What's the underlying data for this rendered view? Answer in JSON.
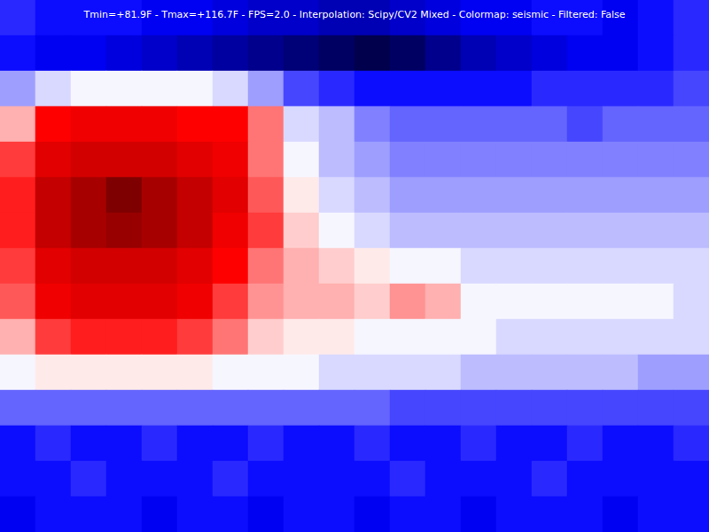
{
  "chart_data": {
    "type": "heatmap",
    "title": "Tmin=+81.9F - Tmax=+116.7F - FPS=2.0 - Interpolation: Scipy/CV2 Mixed - Colormap: seismic - Filtered: False",
    "color_range": [
      81.9,
      116.7
    ],
    "tick_labels": false,
    "cells": [
      [
        92,
        91,
        91,
        91,
        90,
        90,
        89,
        88,
        88,
        87,
        87,
        88,
        89,
        90,
        90,
        91,
        91,
        90,
        91,
        92
      ],
      [
        91,
        90,
        90,
        89,
        88,
        87,
        86,
        85,
        84,
        83,
        81.9,
        83,
        85,
        87,
        88,
        89,
        90,
        90,
        91,
        92
      ],
      [
        96,
        98,
        99,
        99,
        99,
        99,
        98,
        96,
        93,
        92,
        91,
        91,
        91,
        91,
        91,
        92,
        92,
        92,
        92,
        93
      ],
      [
        102,
        108,
        109,
        109,
        109,
        108,
        108,
        104,
        98,
        97,
        95,
        94,
        94,
        94,
        94,
        94,
        93,
        94,
        94,
        94
      ],
      [
        106,
        110,
        111,
        111,
        111,
        110,
        109,
        104,
        99,
        97,
        96,
        95,
        95,
        95,
        95,
        95,
        95,
        95,
        95,
        95
      ],
      [
        107,
        112,
        114,
        116.7,
        114,
        112,
        110,
        105,
        100,
        98,
        97,
        96,
        96,
        96,
        96,
        96,
        96,
        96,
        96,
        96
      ],
      [
        107,
        112,
        114,
        115,
        114,
        112,
        109,
        106,
        101,
        99,
        98,
        97,
        97,
        97,
        97,
        97,
        97,
        97,
        97,
        97
      ],
      [
        106,
        110,
        111,
        111,
        111,
        110,
        108,
        104,
        102,
        101,
        100,
        99,
        99,
        98,
        98,
        98,
        98,
        98,
        98,
        98
      ],
      [
        105,
        109,
        110,
        110,
        110,
        109,
        106,
        103,
        102,
        102,
        101,
        103,
        102,
        99,
        99,
        99,
        99,
        99,
        99,
        98
      ],
      [
        102,
        106,
        107,
        107,
        107,
        106,
        104,
        101,
        100,
        100,
        99,
        99,
        99,
        99,
        98,
        98,
        98,
        98,
        98,
        98
      ],
      [
        99,
        100,
        100,
        100,
        100,
        100,
        99,
        99,
        99,
        98,
        98,
        98,
        98,
        97,
        97,
        97,
        97,
        97,
        96,
        96
      ],
      [
        94,
        94,
        94,
        94,
        94,
        94,
        94,
        94,
        94,
        94,
        94,
        93,
        93,
        93,
        93,
        93,
        93,
        93,
        93,
        93
      ],
      [
        91,
        92,
        91,
        91,
        92,
        91,
        91,
        92,
        91,
        91,
        92,
        91,
        91,
        92,
        91,
        91,
        92,
        91,
        91,
        92
      ],
      [
        91,
        91,
        92,
        91,
        91,
        91,
        92,
        91,
        91,
        91,
        91,
        92,
        91,
        91,
        91,
        92,
        91,
        91,
        91,
        91
      ],
      [
        90,
        91,
        91,
        91,
        90,
        91,
        91,
        90,
        91,
        91,
        90,
        91,
        91,
        90,
        91,
        91,
        91,
        90,
        91,
        91
      ]
    ]
  }
}
